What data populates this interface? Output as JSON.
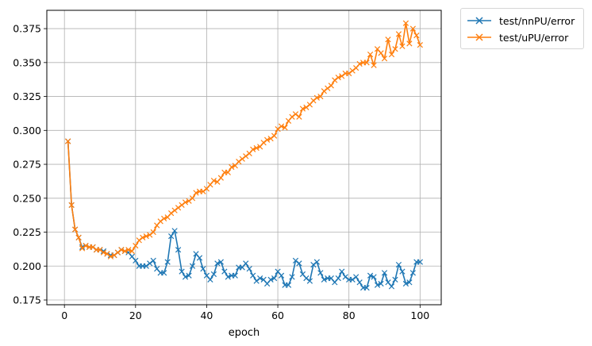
{
  "chart_data": {
    "type": "line",
    "title": "",
    "xlabel": "epoch",
    "ylabel": "",
    "xlim": [
      -4.95,
      105.95
    ],
    "ylim": [
      0.1715,
      0.3885
    ],
    "xticks": [
      0,
      20,
      40,
      60,
      80,
      100
    ],
    "yticks": [
      0.175,
      0.2,
      0.225,
      0.25,
      0.275,
      0.3,
      0.325,
      0.35,
      0.375
    ],
    "ytick_labels": [
      "0.175",
      "0.200",
      "0.225",
      "0.250",
      "0.275",
      "0.300",
      "0.325",
      "0.350",
      "0.375"
    ],
    "grid": true,
    "legend_position": "outside-top-right",
    "marker": "x",
    "series": [
      {
        "name": "test/nnPU/error",
        "color": "#1f77b4",
        "values": [
          0.292,
          0.245,
          0.227,
          0.221,
          0.214,
          0.215,
          0.214,
          0.214,
          0.212,
          0.212,
          0.211,
          0.209,
          0.208,
          0.208,
          0.21,
          0.212,
          0.211,
          0.21,
          0.207,
          0.204,
          0.2,
          0.2,
          0.2,
          0.202,
          0.204,
          0.198,
          0.195,
          0.195,
          0.203,
          0.222,
          0.226,
          0.212,
          0.196,
          0.192,
          0.193,
          0.2,
          0.209,
          0.206,
          0.198,
          0.193,
          0.19,
          0.194,
          0.202,
          0.203,
          0.196,
          0.192,
          0.193,
          0.193,
          0.199,
          0.199,
          0.202,
          0.198,
          0.193,
          0.189,
          0.191,
          0.19,
          0.187,
          0.19,
          0.191,
          0.196,
          0.193,
          0.186,
          0.186,
          0.192,
          0.204,
          0.202,
          0.194,
          0.191,
          0.189,
          0.201,
          0.203,
          0.195,
          0.19,
          0.191,
          0.191,
          0.188,
          0.191,
          0.196,
          0.192,
          0.19,
          0.19,
          0.192,
          0.188,
          0.184,
          0.184,
          0.193,
          0.192,
          0.186,
          0.187,
          0.195,
          0.188,
          0.185,
          0.19,
          0.201,
          0.196,
          0.187,
          0.188,
          0.195,
          0.203,
          0.203
        ]
      },
      {
        "name": "test/uPU/error",
        "color": "#ff7f0e",
        "values": [
          0.292,
          0.245,
          0.227,
          0.221,
          0.213,
          0.215,
          0.214,
          0.214,
          0.212,
          0.212,
          0.21,
          0.209,
          0.207,
          0.208,
          0.21,
          0.212,
          0.211,
          0.212,
          0.211,
          0.215,
          0.219,
          0.221,
          0.222,
          0.223,
          0.225,
          0.23,
          0.233,
          0.235,
          0.236,
          0.239,
          0.241,
          0.243,
          0.245,
          0.247,
          0.248,
          0.25,
          0.254,
          0.255,
          0.255,
          0.257,
          0.26,
          0.263,
          0.262,
          0.265,
          0.269,
          0.269,
          0.273,
          0.274,
          0.277,
          0.279,
          0.281,
          0.283,
          0.286,
          0.287,
          0.288,
          0.291,
          0.293,
          0.294,
          0.296,
          0.301,
          0.303,
          0.302,
          0.307,
          0.31,
          0.312,
          0.31,
          0.316,
          0.317,
          0.319,
          0.322,
          0.324,
          0.325,
          0.329,
          0.331,
          0.333,
          0.337,
          0.339,
          0.34,
          0.342,
          0.342,
          0.344,
          0.346,
          0.349,
          0.35,
          0.35,
          0.356,
          0.348,
          0.36,
          0.357,
          0.353,
          0.367,
          0.356,
          0.36,
          0.371,
          0.362,
          0.379,
          0.364,
          0.375,
          0.37,
          0.363
        ]
      }
    ]
  }
}
